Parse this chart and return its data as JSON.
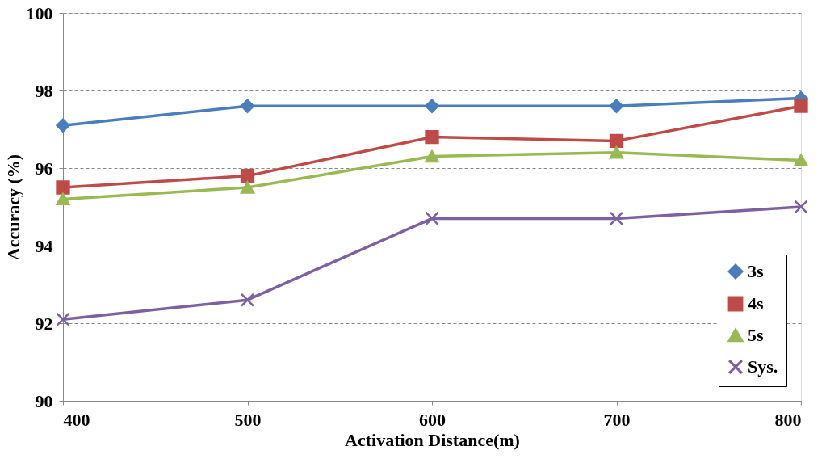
{
  "chart_data": {
    "type": "line",
    "xlabel": "Activation Distance(m)",
    "ylabel": "Accuracy (%)",
    "x": [
      400,
      500,
      600,
      700,
      800
    ],
    "xlim": [
      400,
      800
    ],
    "xticks": [
      400,
      500,
      600,
      700,
      800
    ],
    "ylim": [
      90,
      100
    ],
    "yticks": [
      90,
      92,
      94,
      96,
      98,
      100
    ],
    "grid": "y",
    "legend": "bottom right",
    "line_style": "solid",
    "series": [
      {
        "name": "3s",
        "color": "#4a7ebb",
        "marker": "diamond",
        "values": [
          97.1,
          97.6,
          97.6,
          97.6,
          97.8
        ]
      },
      {
        "name": "4s",
        "color": "#be4b48",
        "marker": "square",
        "values": [
          95.5,
          95.8,
          96.8,
          96.7,
          97.6
        ]
      },
      {
        "name": "5s",
        "color": "#98b954",
        "marker": "triangle",
        "values": [
          95.2,
          95.5,
          96.3,
          96.4,
          96.2
        ]
      },
      {
        "name": "Sys.",
        "color": "#7d60a0",
        "marker": "cross",
        "values": [
          92.1,
          92.6,
          94.7,
          94.7,
          95.0
        ]
      }
    ]
  }
}
